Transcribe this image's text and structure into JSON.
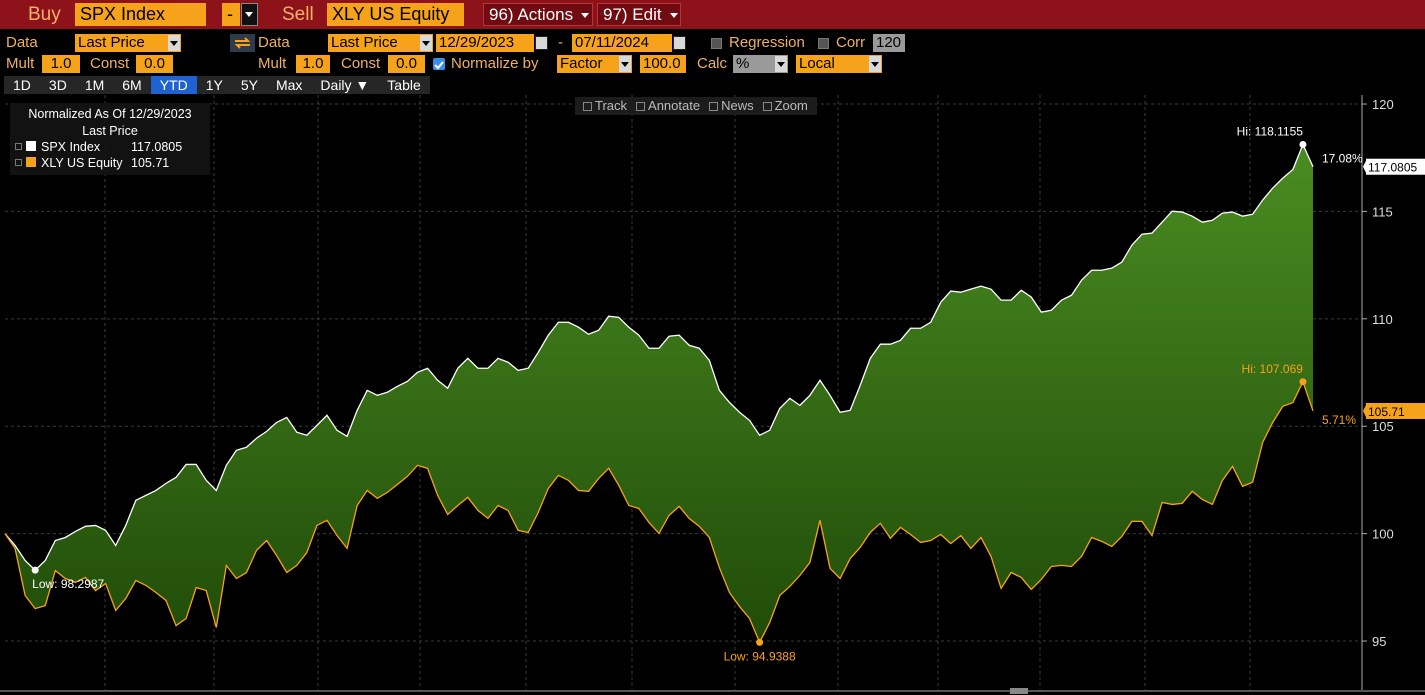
{
  "toolbar": {
    "buy_label": "Buy",
    "buy_ticker": "SPX Index",
    "minus": "-",
    "sell_label": "Sell",
    "sell_ticker": "XLY US Equity",
    "actions": "96) Actions",
    "edit": "97) Edit"
  },
  "controls": {
    "data1_label": "Data",
    "data1_field": "Last Price",
    "data2_label": "Data",
    "data2_field": "Last Price",
    "start_date": "12/29/2023",
    "date_separator": "-",
    "end_date": "07/11/2024",
    "regression": "Regression",
    "corr": "Corr",
    "corr_period": "120",
    "mult1_label": "Mult",
    "mult1": "1.0",
    "const1_label": "Const",
    "const1": "0.0",
    "mult2_label": "Mult",
    "mult2": "1.0",
    "const2_label": "Const",
    "const2": "0.0",
    "normalize_label": "Normalize by",
    "normalize_method": "Factor",
    "normalize_value": "100.0",
    "calc_label": "Calc",
    "calc": "%",
    "currency": "Local",
    "tabs": [
      "1D",
      "3D",
      "1M",
      "6M",
      "YTD",
      "1Y",
      "5Y",
      "Max",
      "Daily ▼",
      "Table"
    ],
    "active_tab": "YTD"
  },
  "chart_tools": [
    "Track",
    "Annotate",
    "News",
    "Zoom"
  ],
  "chart_data": {
    "type": "line",
    "legend_title": "Normalized As Of 12/29/2023",
    "legend_subtitle": "Last Price",
    "categories": [
      null,
      null,
      null,
      null,
      null,
      null,
      null,
      null,
      null,
      null,
      null,
      null,
      null,
      null,
      null,
      null,
      null,
      null,
      null,
      null,
      null,
      null,
      null,
      null,
      null,
      null,
      null,
      null,
      null,
      null,
      null,
      null,
      null,
      null,
      null,
      null,
      null,
      null,
      null,
      null,
      null,
      null,
      null,
      null,
      null,
      null,
      null,
      null,
      null,
      null,
      null,
      null,
      null,
      null,
      null,
      null,
      null,
      null,
      null,
      null,
      null,
      null,
      null,
      null,
      null,
      null,
      null,
      null,
      null,
      null,
      null,
      null,
      null,
      null,
      null,
      null,
      null,
      null,
      null,
      null,
      null,
      null,
      null,
      null,
      null,
      null,
      null,
      null,
      null,
      null,
      null,
      null,
      null,
      null,
      null,
      null,
      null,
      null,
      null,
      null,
      null,
      null,
      null,
      null,
      null,
      null,
      null,
      null,
      null,
      null,
      null,
      null,
      null,
      null,
      null,
      null,
      null,
      null,
      null,
      null,
      null,
      null,
      null,
      null,
      null,
      null,
      null,
      null,
      null,
      null,
      null
    ],
    "series": [
      {
        "name": "SPX Index",
        "color": "#ffffff",
        "change_label": "17.08%",
        "annotations": [
          {
            "label": "Hi: 118.1155",
            "value": 118.1155
          },
          {
            "label": "Low: 98.2987",
            "value": 98.2987
          }
        ],
        "values": [
          100,
          99.45,
          98.75,
          98.2987,
          98.75,
          99.68,
          99.82,
          100.1,
          100.34,
          100.38,
          100.15,
          99.45,
          100.38,
          101.55,
          101.78,
          102.01,
          102.34,
          102.62,
          103.22,
          103.22,
          102.48,
          102.01,
          103.18,
          103.88,
          104.02,
          104.44,
          104.76,
          105.18,
          105.41,
          104.72,
          104.58,
          105.04,
          105.51,
          104.81,
          104.53,
          105.74,
          106.67,
          106.44,
          106.58,
          106.86,
          107.09,
          107.51,
          107.7,
          107.14,
          106.77,
          107.7,
          108.16,
          107.7,
          107.7,
          108.16,
          107.98,
          107.6,
          107.7,
          108.44,
          109.24,
          109.84,
          109.84,
          109.61,
          109.28,
          109.47,
          110.12,
          110.07,
          109.61,
          109.24,
          108.63,
          108.63,
          109.19,
          109.24,
          108.77,
          108.63,
          108.07,
          106.67,
          106.11,
          105.65,
          105.27,
          104.58,
          104.81,
          105.83,
          106.3,
          105.97,
          106.44,
          107.14,
          106.44,
          105.65,
          105.74,
          106.91,
          108.16,
          108.82,
          108.82,
          109.0,
          109.56,
          109.56,
          109.84,
          110.77,
          111.29,
          111.24,
          111.38,
          111.52,
          111.38,
          110.87,
          110.87,
          111.33,
          111.01,
          110.31,
          110.4,
          110.87,
          111.1,
          111.8,
          112.26,
          112.26,
          112.36,
          112.64,
          113.43,
          113.94,
          113.99,
          114.5,
          115.01,
          114.97,
          114.78,
          114.5,
          114.59,
          114.92,
          114.97,
          114.78,
          114.87,
          115.53,
          116.09,
          116.55,
          116.95,
          118.1155,
          117.0805
        ]
      },
      {
        "name": "XLY US Equity",
        "color": "#f7a21b",
        "change_label": "5.71%",
        "annotations": [
          {
            "label": "Hi: 107.069",
            "value": 107.069
          },
          {
            "label": "Low: 94.9388",
            "value": 94.9388
          }
        ],
        "values": [
          100,
          99.31,
          97.12,
          96.51,
          96.65,
          98.28,
          97.91,
          97.73,
          97.96,
          97.35,
          97.68,
          96.42,
          96.98,
          97.82,
          97.59,
          97.26,
          96.89,
          95.72,
          96.05,
          97.49,
          97.35,
          95.63,
          98.52,
          97.91,
          98.19,
          99.22,
          99.68,
          98.98,
          98.19,
          98.52,
          99.12,
          100.38,
          100.62,
          99.91,
          99.31,
          101.31,
          102.01,
          101.64,
          101.92,
          102.29,
          102.67,
          103.18,
          103.04,
          101.78,
          100.89,
          101.31,
          101.69,
          101.08,
          100.71,
          101.31,
          101.08,
          100.15,
          100.05,
          100.99,
          102.11,
          102.71,
          102.48,
          102.01,
          101.97,
          102.57,
          103.04,
          102.25,
          101.31,
          101.17,
          100.52,
          100.01,
          100.85,
          101.27,
          100.71,
          100.34,
          99.82,
          98.42,
          97.26,
          96.61,
          96.05,
          94.9388,
          95.86,
          97.12,
          97.54,
          98.05,
          98.66,
          100.62,
          98.38,
          97.91,
          98.84,
          99.36,
          100.06,
          100.48,
          99.78,
          100.29,
          99.96,
          99.59,
          99.68,
          99.96,
          99.54,
          99.91,
          99.31,
          99.82,
          98.94,
          97.45,
          98.19,
          97.96,
          97.4,
          97.87,
          98.47,
          98.52,
          98.47,
          98.94,
          99.82,
          99.64,
          99.4,
          99.87,
          100.57,
          100.57,
          99.91,
          101.45,
          101.36,
          101.41,
          101.97,
          101.59,
          101.36,
          102.48,
          103.13,
          102.2,
          102.39,
          104.25,
          105.18,
          105.93,
          106.1,
          107.069,
          105.71
        ]
      }
    ],
    "ylim": [
      92.72,
      120.42
    ],
    "yticks": [
      95,
      100,
      105,
      110,
      115,
      120
    ],
    "grid": true,
    "legend": "top-left"
  }
}
